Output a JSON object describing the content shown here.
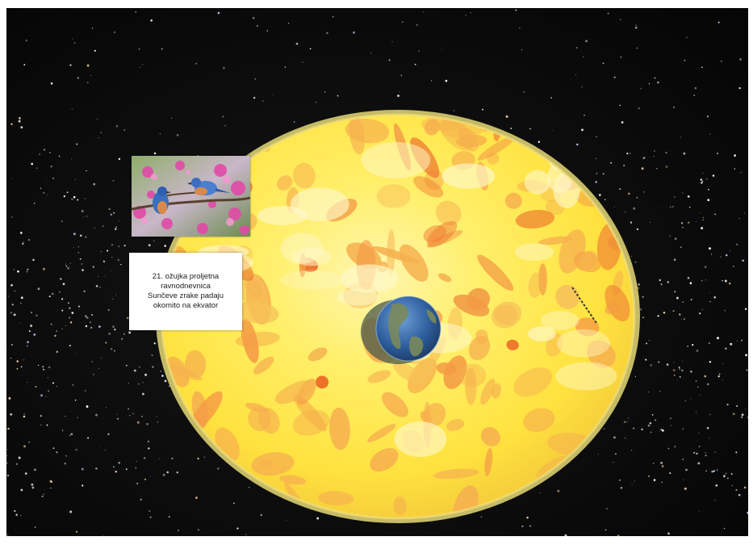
{
  "scene": {
    "info_card": {
      "line1": "21. ožujka proljetna",
      "line2": "ravnodnevnica",
      "line3": "Sunčeve zrake padaju",
      "line4": "okomito na ekvator"
    },
    "colors": {
      "space_background": "#0c0c0c",
      "sun_base": "#ffe94a",
      "sun_rim": "#e6d36a",
      "sun_spots_orange": "#f6a64a",
      "sun_spots_red": "#ef5a1e",
      "earth_ocean": "#2f5f9e"
    },
    "icons": {
      "photo": "bluebirds-on-blossom-photo",
      "sun": "sun-sphere",
      "earth": "earth-globe"
    }
  }
}
